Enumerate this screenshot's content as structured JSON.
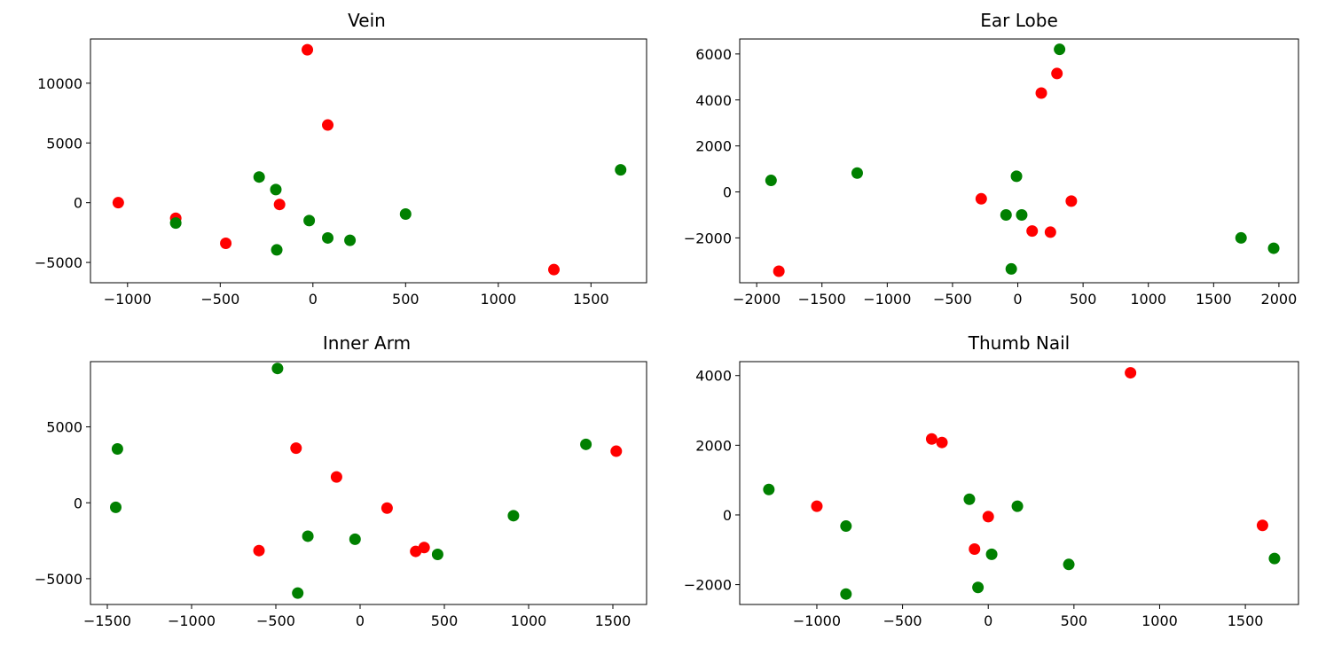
{
  "colors": {
    "series_a": "#ff0000",
    "series_b": "#008000"
  },
  "chart_data": [
    {
      "type": "scatter",
      "title": "Vein",
      "xlim": [
        -1200,
        1800
      ],
      "ylim": [
        -6700,
        13700
      ],
      "xticks": [
        -1000,
        -500,
        0,
        500,
        1000,
        1500
      ],
      "yticks": [
        -5000,
        0,
        5000,
        10000
      ],
      "series": [
        {
          "color": "#ff0000",
          "points": [
            [
              -1050,
              0
            ],
            [
              -740,
              -1300
            ],
            [
              -470,
              -3400
            ],
            [
              -180,
              -150
            ],
            [
              -30,
              12800
            ],
            [
              80,
              6500
            ],
            [
              1300,
              -5600
            ]
          ]
        },
        {
          "color": "#008000",
          "points": [
            [
              -740,
              -1700
            ],
            [
              -290,
              2150
            ],
            [
              -200,
              1100
            ],
            [
              -195,
              -3950
            ],
            [
              -20,
              -1500
            ],
            [
              80,
              -2950
            ],
            [
              200,
              -3150
            ],
            [
              500,
              -950
            ],
            [
              1660,
              2750
            ]
          ]
        }
      ]
    },
    {
      "type": "scatter",
      "title": "Ear Lobe",
      "xlim": [
        -2130,
        2150
      ],
      "ylim": [
        -3950,
        6650
      ],
      "xticks": [
        -2000,
        -1500,
        -1000,
        -500,
        0,
        500,
        1000,
        1500,
        2000
      ],
      "yticks": [
        -2000,
        0,
        2000,
        4000,
        6000
      ],
      "series": [
        {
          "color": "#ff0000",
          "points": [
            [
              -1830,
              -3450
            ],
            [
              -280,
              -300
            ],
            [
              110,
              -1700
            ],
            [
              180,
              4300
            ],
            [
              250,
              -1750
            ],
            [
              300,
              5150
            ],
            [
              410,
              -400
            ]
          ]
        },
        {
          "color": "#008000",
          "points": [
            [
              -1890,
              500
            ],
            [
              -1230,
              820
            ],
            [
              -90,
              -1000
            ],
            [
              -50,
              -3350
            ],
            [
              -10,
              680
            ],
            [
              30,
              -1000
            ],
            [
              320,
              6200
            ],
            [
              1710,
              -2000
            ],
            [
              1960,
              -2450
            ]
          ]
        }
      ]
    },
    {
      "type": "scatter",
      "title": "Inner Arm",
      "xlim": [
        -1600,
        1700
      ],
      "ylim": [
        -6700,
        9300
      ],
      "xticks": [
        -1500,
        -1000,
        -500,
        0,
        500,
        1000,
        1500
      ],
      "yticks": [
        -5000,
        0,
        5000
      ],
      "series": [
        {
          "color": "#ff0000",
          "points": [
            [
              -600,
              -3150
            ],
            [
              -380,
              3600
            ],
            [
              -140,
              1700
            ],
            [
              160,
              -350
            ],
            [
              330,
              -3200
            ],
            [
              380,
              -2950
            ],
            [
              1520,
              3400
            ]
          ]
        },
        {
          "color": "#008000",
          "points": [
            [
              -1450,
              -300
            ],
            [
              -1440,
              3550
            ],
            [
              -490,
              8850
            ],
            [
              -370,
              -5950
            ],
            [
              -310,
              -2200
            ],
            [
              -30,
              -2400
            ],
            [
              460,
              -3400
            ],
            [
              910,
              -850
            ],
            [
              1340,
              3850
            ]
          ]
        }
      ]
    },
    {
      "type": "scatter",
      "title": "Thumb Nail",
      "xlim": [
        -1450,
        1810
      ],
      "ylim": [
        -2570,
        4400
      ],
      "xticks": [
        -1000,
        -500,
        0,
        500,
        1000,
        1500
      ],
      "yticks": [
        -2000,
        0,
        2000,
        4000
      ],
      "series": [
        {
          "color": "#ff0000",
          "points": [
            [
              -1000,
              250
            ],
            [
              -330,
              2180
            ],
            [
              -270,
              2080
            ],
            [
              -80,
              -980
            ],
            [
              0,
              -50
            ],
            [
              830,
              4080
            ],
            [
              1600,
              -300
            ]
          ]
        },
        {
          "color": "#008000",
          "points": [
            [
              -1280,
              730
            ],
            [
              -830,
              -320
            ],
            [
              -830,
              -2270
            ],
            [
              -110,
              450
            ],
            [
              -60,
              -2080
            ],
            [
              20,
              -1130
            ],
            [
              170,
              250
            ],
            [
              470,
              -1420
            ],
            [
              1670,
              -1250
            ]
          ]
        }
      ]
    }
  ]
}
